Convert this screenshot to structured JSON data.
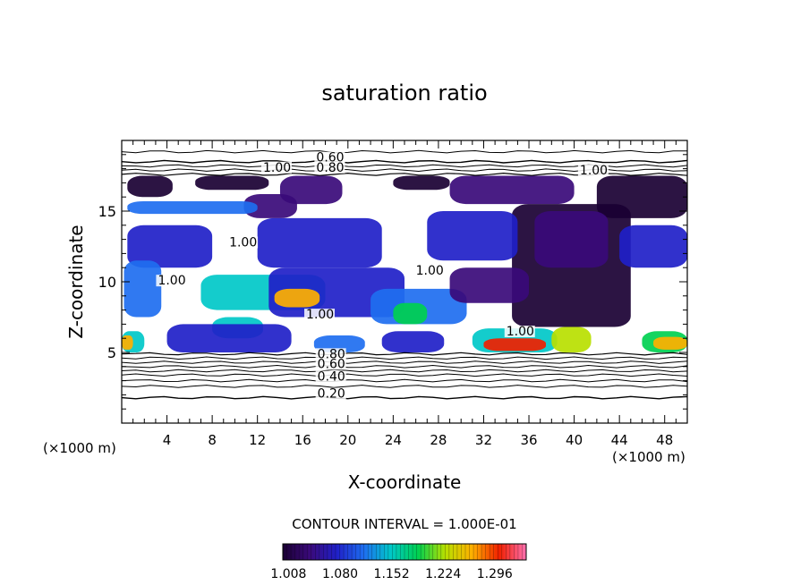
{
  "chart_data": {
    "type": "heatmap",
    "title": "saturation ratio",
    "xlabel": "X-coordinate",
    "ylabel": "Z-coordinate",
    "x_unit": "(×1000 m)",
    "xlim": [
      0,
      50
    ],
    "ylim": [
      0,
      20
    ],
    "x_ticks": [
      4,
      8,
      12,
      16,
      20,
      24,
      28,
      32,
      36,
      40,
      44,
      48
    ],
    "y_ticks": [
      5,
      10,
      15
    ],
    "grid": false,
    "contour_interval_text": "CONTOUR INTERVAL = 1.000E-01",
    "contour_labels": [
      {
        "text": "0.60",
        "x": 17.2,
        "z": 18.5
      },
      {
        "text": "0.80",
        "x": 17.2,
        "z": 17.8
      },
      {
        "text": "1.00",
        "x": 12.5,
        "z": 17.8
      },
      {
        "text": "1.00",
        "x": 40.5,
        "z": 17.6
      },
      {
        "text": "1.00",
        "x": 9.5,
        "z": 12.5
      },
      {
        "text": "1.00",
        "x": 3.2,
        "z": 9.8
      },
      {
        "text": "1.00",
        "x": 26.0,
        "z": 10.5
      },
      {
        "text": "1.00",
        "x": 16.3,
        "z": 7.4
      },
      {
        "text": "1.00",
        "x": 34.0,
        "z": 6.2
      },
      {
        "text": "0.80",
        "x": 17.3,
        "z": 4.6
      },
      {
        "text": "0.60",
        "x": 17.3,
        "z": 3.9
      },
      {
        "text": "0.40",
        "x": 17.3,
        "z": 3.0
      },
      {
        "text": "0.20",
        "x": 17.3,
        "z": 1.8
      }
    ],
    "colorbar": {
      "min": 1.0,
      "max": 1.34,
      "tick_labels": [
        "1.008",
        "1.080",
        "1.152",
        "1.224",
        "1.296"
      ],
      "tick_values": [
        1.008,
        1.08,
        1.152,
        1.224,
        1.296
      ],
      "colormap": [
        "#1a0033",
        "#3a0a7a",
        "#2020c8",
        "#1e6ef0",
        "#00c8c8",
        "#00d050",
        "#b8e000",
        "#ffb000",
        "#f02000",
        "#ff70b0"
      ]
    },
    "regions": [
      {
        "level": 1.05,
        "x": [
          10.8,
          15.5
        ],
        "z": [
          14.5,
          16.2
        ]
      },
      {
        "level": 1.12,
        "x": [
          0.5,
          12.0
        ],
        "z": [
          14.8,
          15.7
        ]
      },
      {
        "level": 1.02,
        "x": [
          14.0,
          19.5
        ],
        "z": [
          15.5,
          17.5
        ]
      },
      {
        "level": 1.01,
        "x": [
          0.5,
          4.5
        ],
        "z": [
          16.0,
          17.5
        ]
      },
      {
        "level": 1.01,
        "x": [
          6.5,
          13.0
        ],
        "z": [
          16.5,
          17.5
        ]
      },
      {
        "level": 1.01,
        "x": [
          24.0,
          29.0
        ],
        "z": [
          16.5,
          17.5
        ]
      },
      {
        "level": 1.02,
        "x": [
          29.0,
          40.0
        ],
        "z": [
          15.5,
          17.5
        ]
      },
      {
        "level": 1.01,
        "x": [
          42.0,
          50.0
        ],
        "z": [
          14.5,
          17.5
        ]
      },
      {
        "level": 1.01,
        "x": [
          34.5,
          45.0
        ],
        "z": [
          6.8,
          15.5
        ]
      },
      {
        "level": 1.08,
        "x": [
          0.5,
          8.0
        ],
        "z": [
          11.0,
          14.0
        ]
      },
      {
        "level": 1.08,
        "x": [
          12.0,
          23.0
        ],
        "z": [
          11.0,
          14.5
        ]
      },
      {
        "level": 1.08,
        "x": [
          27.0,
          35.0
        ],
        "z": [
          11.5,
          15.0
        ]
      },
      {
        "level": 1.06,
        "x": [
          44.0,
          50.0
        ],
        "z": [
          11.0,
          14.0
        ]
      },
      {
        "level": 1.1,
        "x": [
          0.2,
          3.5
        ],
        "z": [
          7.5,
          11.5
        ]
      },
      {
        "level": 1.14,
        "x": [
          7.0,
          18.0
        ],
        "z": [
          8.0,
          10.5
        ]
      },
      {
        "level": 1.09,
        "x": [
          13.0,
          25.0
        ],
        "z": [
          7.5,
          11.0
        ]
      },
      {
        "level": 1.1,
        "x": [
          22.0,
          30.5
        ],
        "z": [
          7.0,
          9.5
        ]
      },
      {
        "level": 1.05,
        "x": [
          29.0,
          36.0
        ],
        "z": [
          8.5,
          11.0
        ]
      },
      {
        "level": 1.28,
        "x": [
          13.5,
          17.5
        ],
        "z": [
          8.2,
          9.5
        ]
      },
      {
        "level": 1.2,
        "x": [
          24.0,
          27.0
        ],
        "z": [
          7.0,
          8.5
        ]
      },
      {
        "level": 1.16,
        "x": [
          8.0,
          12.5
        ],
        "z": [
          6.0,
          7.5
        ]
      },
      {
        "level": 1.06,
        "x": [
          4.0,
          15.0
        ],
        "z": [
          5.0,
          7.0
        ]
      },
      {
        "level": 1.08,
        "x": [
          23.0,
          28.5
        ],
        "z": [
          5.0,
          6.5
        ]
      },
      {
        "level": 1.14,
        "x": [
          0.0,
          2.0
        ],
        "z": [
          5.0,
          6.5
        ]
      },
      {
        "level": 1.26,
        "x": [
          0.0,
          1.0
        ],
        "z": [
          5.2,
          6.2
        ]
      },
      {
        "level": 1.16,
        "x": [
          31.0,
          38.5
        ],
        "z": [
          5.0,
          6.7
        ]
      },
      {
        "level": 1.3,
        "x": [
          32.0,
          37.5
        ],
        "z": [
          5.1,
          6.0
        ]
      },
      {
        "level": 1.22,
        "x": [
          38.0,
          41.5
        ],
        "z": [
          5.0,
          6.8
        ]
      },
      {
        "level": 1.18,
        "x": [
          46.0,
          50.0
        ],
        "z": [
          5.0,
          6.5
        ]
      },
      {
        "level": 1.28,
        "x": [
          47.0,
          50.0
        ],
        "z": [
          5.2,
          6.1
        ]
      },
      {
        "level": 1.12,
        "x": [
          17.0,
          21.5
        ],
        "z": [
          5.0,
          6.2
        ]
      },
      {
        "level": 1.02,
        "x": [
          36.5,
          43.0
        ],
        "z": [
          11.0,
          15.0
        ]
      }
    ]
  }
}
